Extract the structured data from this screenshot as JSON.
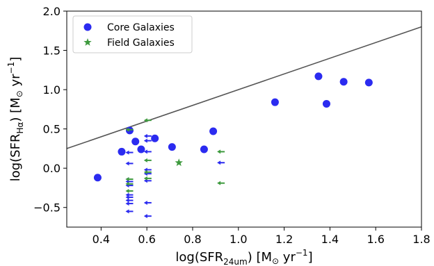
{
  "chart_data": {
    "type": "scatter",
    "xlabel": "log(SFR24um) [M⊙ yr−1]",
    "ylabel": "log(SFRHα) [M⊙ yr−1]",
    "xlabel_parts": {
      "pre": "log(SFR",
      "sub": "24um",
      "mid": ") [M",
      "sun": "⊙",
      "post": " yr",
      "sup": "−1",
      "end": "]"
    },
    "ylabel_parts": {
      "pre": "log(SFR",
      "sub": "Hα",
      "mid": ") [M",
      "sun": "⊙",
      "post": " yr",
      "sup": "−1",
      "end": "]"
    },
    "xlim": [
      0.25,
      1.8
    ],
    "ylim": [
      -0.75,
      2.0
    ],
    "xticks": [
      0.4,
      0.6,
      0.8,
      1.0,
      1.2,
      1.4,
      1.6,
      1.8
    ],
    "yticks": [
      -0.5,
      0.0,
      0.5,
      1.0,
      1.5,
      2.0
    ],
    "xtick_labels": [
      "0.4",
      "0.6",
      "0.8",
      "1.0",
      "1.2",
      "1.4",
      "1.6",
      "1.8"
    ],
    "ytick_labels": [
      "−0.5",
      "0.0",
      "0.5",
      "1.0",
      "1.5",
      "2.0"
    ],
    "grid": false,
    "legend_position": "top-left",
    "reference_line": {
      "x": [
        0.25,
        1.8
      ],
      "y": [
        0.25,
        1.8
      ],
      "color": "#555555"
    },
    "series": [
      {
        "name": "Core Galaxies",
        "marker": "circle",
        "color": "#2b2bf0",
        "points": [
          [
            0.385,
            -0.12
          ],
          [
            0.49,
            0.21
          ],
          [
            0.525,
            0.48
          ],
          [
            0.55,
            0.34
          ],
          [
            0.575,
            0.24
          ],
          [
            0.635,
            0.38
          ],
          [
            0.71,
            0.27
          ],
          [
            0.85,
            0.24
          ],
          [
            0.89,
            0.47
          ],
          [
            1.16,
            0.84
          ],
          [
            1.35,
            1.17
          ],
          [
            1.385,
            0.82
          ],
          [
            1.46,
            1.1
          ],
          [
            1.57,
            1.09
          ]
        ],
        "upper_limits": [
          [
            0.525,
            0.2
          ],
          [
            0.525,
            0.06
          ],
          [
            0.525,
            -0.14
          ],
          [
            0.525,
            -0.17
          ],
          [
            0.525,
            -0.22
          ],
          [
            0.525,
            -0.34
          ],
          [
            0.525,
            -0.37
          ],
          [
            0.525,
            -0.41
          ],
          [
            0.525,
            -0.45
          ],
          [
            0.525,
            -0.55
          ],
          [
            0.605,
            0.41
          ],
          [
            0.605,
            0.35
          ],
          [
            0.605,
            0.21
          ],
          [
            0.605,
            -0.02
          ],
          [
            0.605,
            -0.07
          ],
          [
            0.605,
            -0.16
          ],
          [
            0.605,
            -0.44
          ],
          [
            0.605,
            -0.61
          ],
          [
            0.925,
            0.07
          ]
        ]
      },
      {
        "name": "Field Galaxies",
        "marker": "star",
        "color": "#3e9a3e",
        "points": [
          [
            0.74,
            0.07
          ]
        ],
        "upper_limits": [
          [
            0.605,
            0.61
          ],
          [
            0.525,
            0.49
          ],
          [
            0.605,
            0.1
          ],
          [
            0.605,
            -0.05
          ],
          [
            0.605,
            -0.13
          ],
          [
            0.525,
            -0.14
          ],
          [
            0.525,
            -0.2
          ],
          [
            0.525,
            -0.29
          ],
          [
            0.925,
            0.21
          ],
          [
            0.925,
            -0.19
          ]
        ]
      }
    ]
  }
}
